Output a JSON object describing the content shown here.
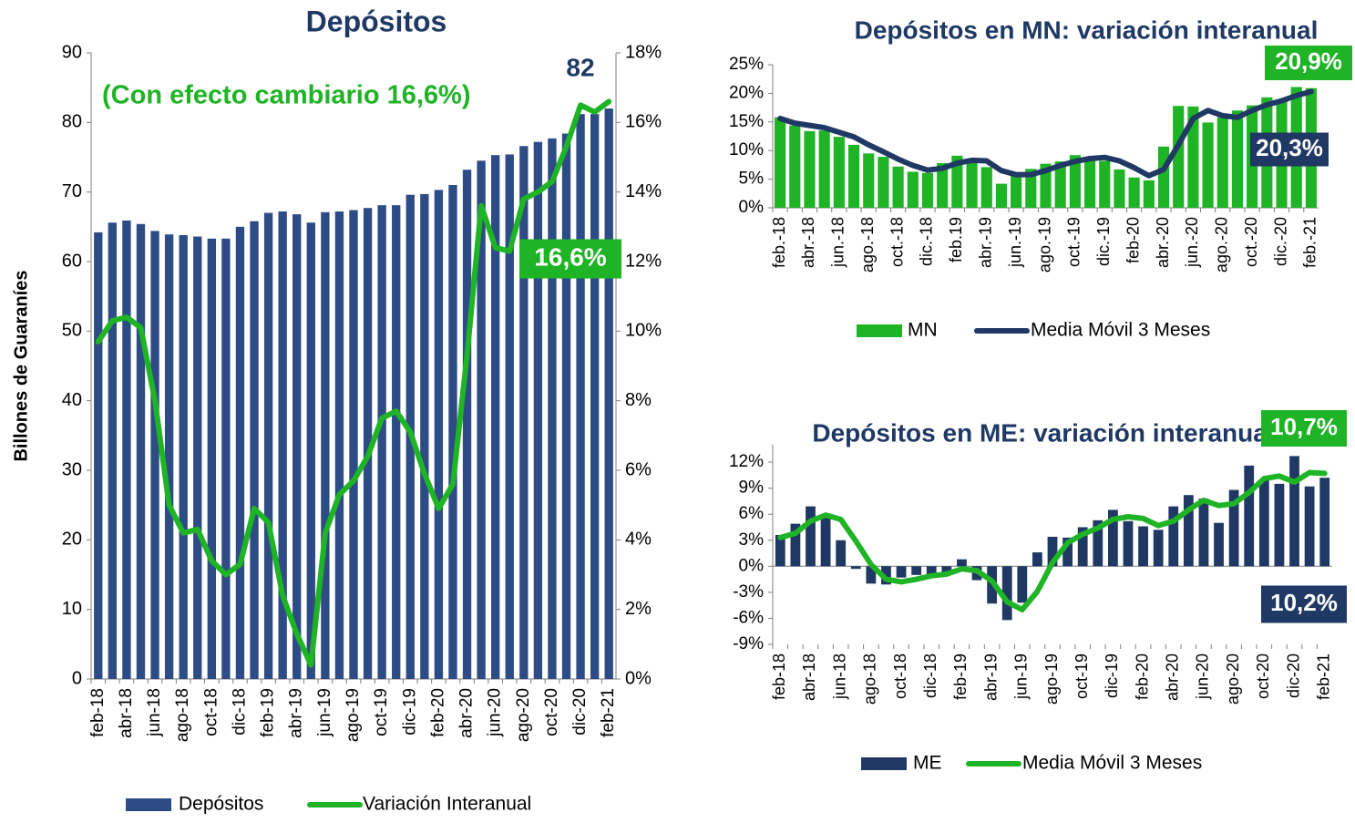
{
  "chart_data": [
    {
      "type": "bar",
      "title": "Depósitos",
      "y_label": "Billones de Guaraníes",
      "categories": [
        "feb-18",
        null,
        "abr-18",
        null,
        "jun-18",
        null,
        "ago-18",
        null,
        "oct-18",
        null,
        "dic-18",
        null,
        "feb-19",
        null,
        "abr-19",
        null,
        "jun-19",
        null,
        "ago-19",
        null,
        "oct-19",
        null,
        "dic-19",
        null,
        "feb-20",
        null,
        "abr-20",
        null,
        "jun-20",
        null,
        "ago-20",
        null,
        "oct-20",
        null,
        "dic-20",
        null,
        "feb-21"
      ],
      "series": [
        {
          "name": "Depósitos",
          "type": "bar",
          "color": "#2d4b84",
          "values": [
            64.2,
            65.6,
            65.9,
            65.4,
            64.4,
            63.9,
            63.8,
            63.6,
            63.3,
            63.3,
            65.0,
            65.8,
            67.0,
            67.2,
            66.8,
            65.6,
            67.1,
            67.2,
            67.4,
            67.7,
            68.1,
            68.1,
            69.6,
            69.7,
            70.3,
            71.0,
            73.2,
            74.5,
            75.3,
            75.4,
            76.6,
            77.2,
            77.7,
            78.4,
            81.2,
            81.2,
            82.0
          ]
        },
        {
          "name": "Variación  Interanual",
          "type": "line",
          "axis": "y2",
          "color": "#1fb326",
          "values": [
            9.7,
            10.3,
            10.4,
            10.1,
            8.0,
            5.0,
            4.2,
            4.3,
            3.4,
            3.0,
            3.3,
            4.9,
            4.5,
            2.4,
            1.3,
            0.4,
            4.2,
            5.3,
            5.7,
            6.4,
            7.5,
            7.7,
            7.1,
            5.9,
            4.9,
            5.6,
            9.3,
            13.6,
            12.4,
            12.3,
            13.8,
            14.0,
            14.3,
            15.3,
            16.5,
            16.3,
            16.6
          ]
        }
      ],
      "ylim": [
        0,
        90
      ],
      "yticks": [
        0,
        10,
        20,
        30,
        40,
        50,
        60,
        70,
        80,
        90
      ],
      "y2lim": [
        0,
        18
      ],
      "y2ticks": [
        {
          "value": 0,
          "label": "0%"
        },
        {
          "value": 2,
          "label": "2%"
        },
        {
          "value": 4,
          "label": "4%"
        },
        {
          "value": 6,
          "label": "6%"
        },
        {
          "value": 8,
          "label": "8%"
        },
        {
          "value": 10,
          "label": "10%"
        },
        {
          "value": 12,
          "label": "12%"
        },
        {
          "value": 14,
          "label": "14%"
        },
        {
          "value": 16,
          "label": "16%"
        },
        {
          "value": 18,
          "label": "18%"
        }
      ],
      "annotations": [
        "82",
        "16,6%",
        "(Con efecto cambiario 16,6%)"
      ]
    },
    {
      "type": "bar",
      "title": "Depósitos en MN: variación interanual",
      "categories": [
        "feb.-18",
        null,
        "abr.-18",
        null,
        "jun.-18",
        null,
        "ago.-18",
        null,
        "oct.-18",
        null,
        "dic.-18",
        null,
        "feb.19",
        null,
        "abr.-19",
        null,
        "jun.-19",
        null,
        "ago.-19",
        null,
        "oct.-19",
        null,
        "dic.-19",
        null,
        "feb-20",
        null,
        "abr.-20",
        null,
        "jun.-20",
        null,
        "ago.-20",
        null,
        "oct.-20",
        null,
        "dic.-20",
        null,
        "feb.-21"
      ],
      "series": [
        {
          "name": "MN",
          "type": "bar",
          "color": "#1fb326",
          "values": [
            15.8,
            14.4,
            13.4,
            13.5,
            12.4,
            11.0,
            9.5,
            8.9,
            7.2,
            6.3,
            6.1,
            7.8,
            9.1,
            8.1,
            7.1,
            4.2,
            6.1,
            6.8,
            7.7,
            8.1,
            9.2,
            8.8,
            8.2,
            6.7,
            5.3,
            4.8,
            10.7,
            17.8,
            17.7,
            14.9,
            15.8,
            17.0,
            17.9,
            19.3,
            18.9,
            21.1,
            20.9
          ]
        },
        {
          "name": "Media Móvil 3 Meses",
          "type": "line",
          "color": "#1f3864",
          "values": [
            15.6,
            14.8,
            14.4,
            14.0,
            13.2,
            12.4,
            11.0,
            9.8,
            8.5,
            7.4,
            6.6,
            6.9,
            7.8,
            8.3,
            8.2,
            6.5,
            5.8,
            5.8,
            6.5,
            7.4,
            8.1,
            8.6,
            8.8,
            8.2,
            7.0,
            5.6,
            6.7,
            11.0,
            15.6,
            17.0,
            16.1,
            15.8,
            17.0,
            18.0,
            18.7,
            19.6,
            20.3
          ]
        }
      ],
      "ylim": [
        0,
        25
      ],
      "yticks": [
        {
          "value": 0,
          "label": "0%"
        },
        {
          "value": 5,
          "label": "5%"
        },
        {
          "value": 10,
          "label": "10%"
        },
        {
          "value": 15,
          "label": "15%"
        },
        {
          "value": 20,
          "label": "20%"
        },
        {
          "value": 25,
          "label": "25%"
        }
      ],
      "annotations": [
        "20,9%",
        "20,3%"
      ]
    },
    {
      "type": "bar",
      "title": "Depósitos en ME: variación interanual",
      "categories": [
        "feb-18",
        null,
        "abr-18",
        null,
        "jun-18",
        null,
        "ago-18",
        null,
        "oct-18",
        null,
        "dic-18",
        null,
        "feb-19",
        null,
        "abr-19",
        null,
        "jun-19",
        null,
        "ago-19",
        null,
        "oct-19",
        null,
        "dic-19",
        null,
        "feb-20",
        null,
        "abr-20",
        null,
        "jun-20",
        null,
        "ago-20",
        null,
        "oct-20",
        null,
        "dic-20",
        null,
        "feb-21"
      ],
      "series": [
        {
          "name": "ME",
          "type": "bar",
          "color": "#1f3864",
          "values": [
            3.6,
            4.9,
            6.9,
            5.9,
            3.0,
            -0.3,
            -2.0,
            -2.1,
            -1.3,
            -1.0,
            -0.9,
            -0.8,
            0.8,
            -1.6,
            -4.3,
            -6.2,
            -4.2,
            1.6,
            3.4,
            3.3,
            4.5,
            5.3,
            6.5,
            5.2,
            4.6,
            4.2,
            6.9,
            8.2,
            7.8,
            5.0,
            8.8,
            11.6,
            10.0,
            9.5,
            12.7,
            9.2,
            10.2
          ]
        },
        {
          "name": "Media Móvil 3 Meses",
          "type": "line",
          "color": "#1fb326",
          "values": [
            3.3,
            3.8,
            5.2,
            5.9,
            5.4,
            2.9,
            0.2,
            -1.5,
            -1.8,
            -1.5,
            -1.1,
            -0.9,
            -0.3,
            -0.5,
            -1.7,
            -4.1,
            -5.0,
            -2.9,
            0.4,
            2.7,
            3.7,
            4.4,
            5.4,
            5.7,
            5.5,
            4.7,
            5.2,
            6.5,
            7.6,
            7.0,
            7.2,
            8.5,
            10.1,
            10.4,
            9.7,
            10.8,
            10.7
          ]
        }
      ],
      "ylim": [
        -9,
        14
      ],
      "yticks": [
        {
          "value": -9,
          "label": "-9%"
        },
        {
          "value": -6,
          "label": "-6%"
        },
        {
          "value": -3,
          "label": "-3%"
        },
        {
          "value": 0,
          "label": "0%"
        },
        {
          "value": 3,
          "label": "3%"
        },
        {
          "value": 6,
          "label": "6%"
        },
        {
          "value": 9,
          "label": "9%"
        },
        {
          "value": 12,
          "label": "12%"
        }
      ],
      "annotations": [
        "10,7%",
        "10,2%"
      ]
    }
  ]
}
